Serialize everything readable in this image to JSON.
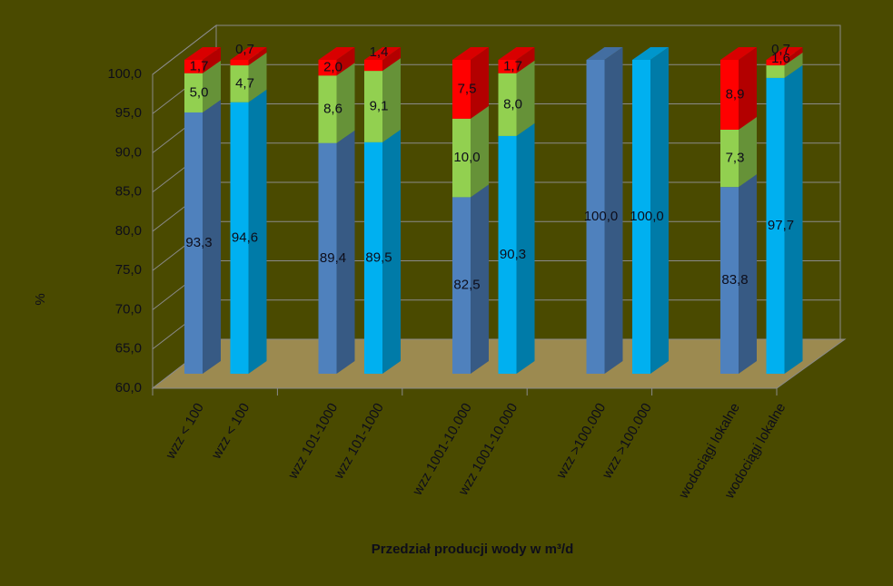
{
  "chart_data": {
    "type": "stacked-bar-3d",
    "y_axis_label": "%",
    "x_axis_label": "Przedział producji wody w m³/d",
    "categories": [
      "wzz < 100",
      "wzz < 100",
      "wzz 101-1000",
      "wzz 101-1000",
      "wzz 1001-10.000",
      "wzz 1001-10.000",
      "wzz >100.000",
      "wzz >100.000",
      "wodociągi lokalne",
      "wodociągi lokalne"
    ],
    "series": [
      {
        "colors": [
          "#4f81bd",
          "#00b0f0",
          "#4f81bd",
          "#00b0f0",
          "#4f81bd",
          "#00b0f0",
          "#4f81bd",
          "#00b0f0",
          "#4f81bd",
          "#00b0f0"
        ],
        "values": [
          93.3,
          94.6,
          89.4,
          89.5,
          82.5,
          90.3,
          100.0,
          100.0,
          83.8,
          97.7
        ],
        "value_labels": [
          "93,3",
          "94,6",
          "89,4",
          "89,5",
          "82,5",
          "90,3",
          "100,0",
          "100,0",
          "83,8",
          "97,7"
        ]
      },
      {
        "color": "#92d050",
        "values": [
          5.0,
          4.7,
          8.6,
          9.1,
          10.0,
          8.0,
          null,
          null,
          7.3,
          1.6
        ],
        "value_labels": [
          "5,0",
          "4,7",
          "8,6",
          "9,1",
          "10,0",
          "8,0",
          null,
          null,
          "7,3",
          "1,6"
        ]
      },
      {
        "color": "#ff0000",
        "values": [
          1.7,
          0.7,
          2.0,
          1.4,
          7.5,
          1.7,
          null,
          null,
          8.9,
          0.7
        ],
        "value_labels": [
          "1,7",
          "0,7",
          "2,0",
          "1,4",
          "7,5",
          "1,7",
          null,
          null,
          "8,9",
          "0,7"
        ]
      }
    ],
    "ylim": [
      60,
      100
    ],
    "yticks": [
      {
        "value": 60,
        "label": "60,0"
      },
      {
        "value": 65,
        "label": "65,0"
      },
      {
        "value": 70,
        "label": "70,0"
      },
      {
        "value": 75,
        "label": "75,0"
      },
      {
        "value": 80,
        "label": "80,0"
      },
      {
        "value": 85,
        "label": "85,0"
      },
      {
        "value": 90,
        "label": "90,0"
      },
      {
        "value": 95,
        "label": "95,0"
      },
      {
        "value": 100,
        "label": "100,0"
      }
    ],
    "grid": true
  }
}
